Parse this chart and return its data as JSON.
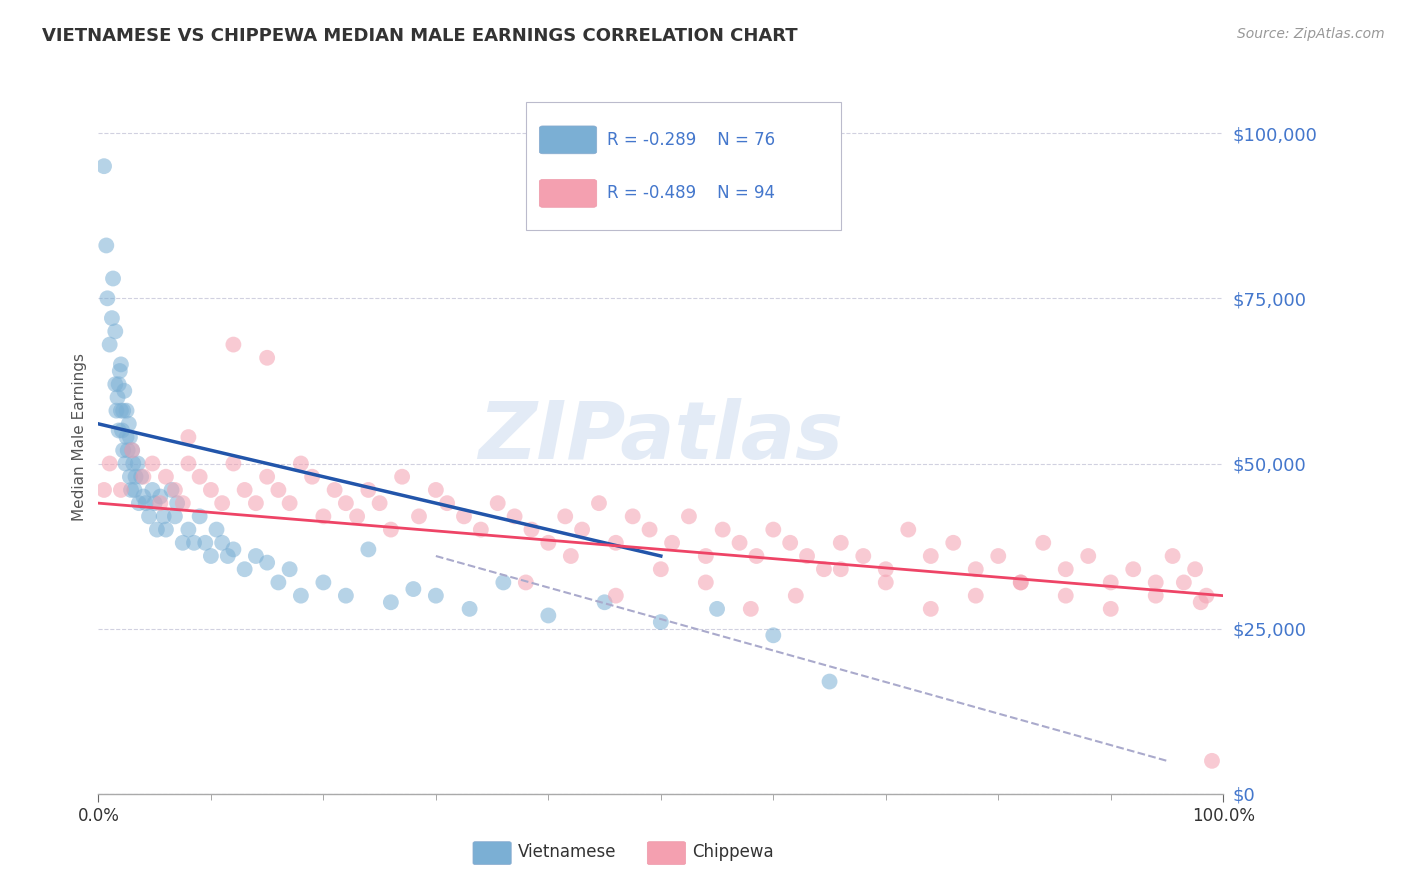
{
  "title": "VIETNAMESE VS CHIPPEWA MEDIAN MALE EARNINGS CORRELATION CHART",
  "source": "Source: ZipAtlas.com",
  "ylabel": "Median Male Earnings",
  "watermark": "ZIPatlas",
  "legend_r1": "-0.289",
  "legend_n1": "76",
  "legend_r2": "-0.489",
  "legend_n2": "94",
  "legend_label1": "Vietnamese",
  "legend_label2": "Chippewa",
  "ytick_labels": [
    "$0",
    "$25,000",
    "$50,000",
    "$75,000",
    "$100,000"
  ],
  "ytick_values": [
    0,
    25000,
    50000,
    75000,
    100000
  ],
  "xtick_labels": [
    "0.0%",
    "100.0%"
  ],
  "xlim": [
    0,
    1.0
  ],
  "ylim": [
    0,
    108000
  ],
  "color_vietnamese": "#7BAFD4",
  "color_chippewa": "#F4A0B0",
  "color_line_vietnamese": "#2255AA",
  "color_line_chippewa": "#EE4466",
  "color_dashed": "#AAAACC",
  "background_color": "#FFFFFF",
  "grid_color": "#CCCCDD",
  "title_color": "#333333",
  "right_label_color": "#4477CC",
  "source_color": "#999999",
  "viet_x": [
    0.005,
    0.007,
    0.008,
    0.01,
    0.012,
    0.013,
    0.015,
    0.015,
    0.016,
    0.017,
    0.018,
    0.018,
    0.019,
    0.02,
    0.02,
    0.021,
    0.022,
    0.022,
    0.023,
    0.024,
    0.025,
    0.025,
    0.026,
    0.027,
    0.028,
    0.028,
    0.029,
    0.03,
    0.031,
    0.032,
    0.033,
    0.035,
    0.036,
    0.038,
    0.04,
    0.042,
    0.045,
    0.048,
    0.05,
    0.052,
    0.055,
    0.058,
    0.06,
    0.065,
    0.068,
    0.07,
    0.075,
    0.08,
    0.085,
    0.09,
    0.095,
    0.1,
    0.105,
    0.11,
    0.115,
    0.12,
    0.13,
    0.14,
    0.15,
    0.16,
    0.17,
    0.18,
    0.2,
    0.22,
    0.24,
    0.26,
    0.28,
    0.3,
    0.33,
    0.36,
    0.4,
    0.45,
    0.5,
    0.55,
    0.6,
    0.65
  ],
  "viet_y": [
    95000,
    83000,
    75000,
    68000,
    72000,
    78000,
    62000,
    70000,
    58000,
    60000,
    55000,
    62000,
    64000,
    58000,
    65000,
    55000,
    52000,
    58000,
    61000,
    50000,
    54000,
    58000,
    52000,
    56000,
    48000,
    54000,
    46000,
    52000,
    50000,
    46000,
    48000,
    50000,
    44000,
    48000,
    45000,
    44000,
    42000,
    46000,
    44000,
    40000,
    45000,
    42000,
    40000,
    46000,
    42000,
    44000,
    38000,
    40000,
    38000,
    42000,
    38000,
    36000,
    40000,
    38000,
    36000,
    37000,
    34000,
    36000,
    35000,
    32000,
    34000,
    30000,
    32000,
    30000,
    37000,
    29000,
    31000,
    30000,
    28000,
    32000,
    27000,
    29000,
    26000,
    28000,
    24000,
    17000
  ],
  "chip_x": [
    0.005,
    0.01,
    0.02,
    0.03,
    0.04,
    0.048,
    0.055,
    0.06,
    0.068,
    0.075,
    0.08,
    0.09,
    0.1,
    0.11,
    0.12,
    0.13,
    0.14,
    0.15,
    0.16,
    0.17,
    0.18,
    0.19,
    0.2,
    0.21,
    0.22,
    0.23,
    0.24,
    0.25,
    0.26,
    0.27,
    0.285,
    0.3,
    0.31,
    0.325,
    0.34,
    0.355,
    0.37,
    0.385,
    0.4,
    0.415,
    0.43,
    0.445,
    0.46,
    0.475,
    0.49,
    0.51,
    0.525,
    0.54,
    0.555,
    0.57,
    0.585,
    0.6,
    0.615,
    0.63,
    0.645,
    0.66,
    0.68,
    0.7,
    0.72,
    0.74,
    0.76,
    0.78,
    0.8,
    0.82,
    0.84,
    0.86,
    0.88,
    0.9,
    0.92,
    0.94,
    0.955,
    0.965,
    0.975,
    0.985,
    0.38,
    0.42,
    0.46,
    0.5,
    0.54,
    0.58,
    0.62,
    0.66,
    0.7,
    0.74,
    0.78,
    0.82,
    0.86,
    0.9,
    0.94,
    0.98,
    0.12,
    0.08,
    0.15,
    0.99
  ],
  "chip_y": [
    46000,
    50000,
    46000,
    52000,
    48000,
    50000,
    44000,
    48000,
    46000,
    44000,
    50000,
    48000,
    46000,
    44000,
    50000,
    46000,
    44000,
    48000,
    46000,
    44000,
    50000,
    48000,
    42000,
    46000,
    44000,
    42000,
    46000,
    44000,
    40000,
    48000,
    42000,
    46000,
    44000,
    42000,
    40000,
    44000,
    42000,
    40000,
    38000,
    42000,
    40000,
    44000,
    38000,
    42000,
    40000,
    38000,
    42000,
    36000,
    40000,
    38000,
    36000,
    40000,
    38000,
    36000,
    34000,
    38000,
    36000,
    34000,
    40000,
    36000,
    38000,
    34000,
    36000,
    32000,
    38000,
    34000,
    36000,
    32000,
    34000,
    30000,
    36000,
    32000,
    34000,
    30000,
    32000,
    36000,
    30000,
    34000,
    32000,
    28000,
    30000,
    34000,
    32000,
    28000,
    30000,
    32000,
    30000,
    28000,
    32000,
    29000,
    68000,
    54000,
    66000,
    5000
  ],
  "viet_line_x": [
    0.0,
    0.5
  ],
  "viet_line_y": [
    56000,
    36000
  ],
  "chip_line_x": [
    0.0,
    1.0
  ],
  "chip_line_y": [
    44000,
    30000
  ],
  "dash_line_x": [
    0.3,
    0.95
  ],
  "dash_line_y": [
    36000,
    5000
  ]
}
